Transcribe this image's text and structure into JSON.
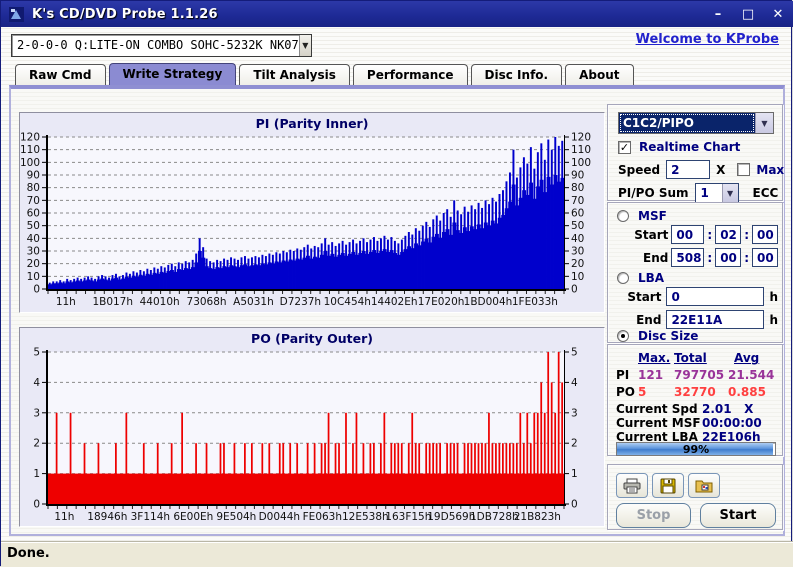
{
  "window": {
    "title": "K's CD/DVD Probe 1.1.26",
    "status": "Done.",
    "buttons": {
      "minimize": "–",
      "maximize": "□",
      "close": "✕"
    }
  },
  "toolbar": {
    "drive_value": "2-0-0-0 Q:LITE-ON COMBO SOHC-5232K NK07",
    "welcome_link": "Welcome to KProbe"
  },
  "tabs": [
    {
      "label": "Raw Cmd",
      "active": false
    },
    {
      "label": "Write Strategy",
      "active": true
    },
    {
      "label": "Tilt Analysis",
      "active": false
    },
    {
      "label": "Performance",
      "active": false
    },
    {
      "label": "Disc Info.",
      "active": false
    },
    {
      "label": "About",
      "active": false
    }
  ],
  "controls": {
    "mode_select": {
      "value": "C1C2/PIPO"
    },
    "realtime_chart": {
      "label": "Realtime Chart",
      "checked": true,
      "glyph": "✓"
    },
    "speed": {
      "label": "Speed",
      "value": "2",
      "unit": "X"
    },
    "max": {
      "label": "Max",
      "checked": false
    },
    "pipo_sum": {
      "label": "PI/PO Sum",
      "value": "1",
      "suffix": "ECC"
    },
    "msf": {
      "label": "MSF",
      "selected": false,
      "start_label": "Start",
      "end_label": "End",
      "separator": ":",
      "start": [
        "00",
        "02",
        "00"
      ],
      "end": [
        "508",
        "00",
        "00"
      ]
    },
    "lba": {
      "label": "LBA",
      "selected": false,
      "start_label": "Start",
      "end_label": "End",
      "start": "0",
      "end": "22E11A",
      "unit": "h"
    },
    "disc_size": {
      "label": "Disc Size",
      "selected": true
    }
  },
  "stats": {
    "headers": [
      "Max.",
      "Total",
      "Avg"
    ],
    "rows": [
      {
        "name": "PI",
        "max": "121",
        "total": "797705",
        "avg": "21.544",
        "color": "#993399"
      },
      {
        "name": "PO",
        "max": "5",
        "total": "32770",
        "avg": "0.885",
        "color": "#ff4040"
      }
    ],
    "current": [
      {
        "label": "Current Spd",
        "value": "2.01   X"
      },
      {
        "label": "Current MSF",
        "value": "00:00:00"
      },
      {
        "label": "Current LBA",
        "value": "22E106h"
      }
    ],
    "progress": {
      "percent": 99,
      "label": "99%",
      "color": "#4a86d8"
    }
  },
  "actions": {
    "stop_label": "Stop",
    "start_label": "Start",
    "icon_buttons": [
      {
        "icon": "printer"
      },
      {
        "icon": "save-floppy"
      },
      {
        "icon": "export-image"
      }
    ]
  },
  "chart_data": [
    {
      "type": "bar",
      "title": "PI (Parity Inner)",
      "xlabel": "",
      "ylabel": "",
      "ylim": [
        0,
        120
      ],
      "yticks": [
        0,
        10,
        20,
        30,
        40,
        50,
        60,
        70,
        80,
        90,
        100,
        110,
        120
      ],
      "grid": true,
      "color": "#0000cc",
      "x_tick_labels": [
        "11h",
        "1B017h",
        "44010h",
        "73068h",
        "A5031h",
        "D7237h",
        "10C454h",
        "14402Eh",
        "17E020h",
        "1BD004h",
        "1FE033h"
      ],
      "values": [
        5,
        6,
        6,
        7,
        6,
        8,
        7,
        8,
        9,
        8,
        9,
        10,
        9,
        8,
        10,
        11,
        10,
        9,
        11,
        12,
        10,
        11,
        13,
        12,
        14,
        13,
        15,
        14,
        16,
        15,
        17,
        16,
        18,
        17,
        19,
        20,
        18,
        21,
        20,
        22,
        21,
        23,
        28,
        40,
        33,
        24,
        22,
        21,
        23,
        22,
        24,
        23,
        25,
        24,
        23,
        25,
        26,
        24,
        25,
        26,
        25,
        27,
        26,
        28,
        27,
        29,
        28,
        30,
        29,
        31,
        30,
        32,
        31,
        33,
        35,
        32,
        34,
        33,
        36,
        40,
        35,
        37,
        34,
        36,
        38,
        35,
        37,
        39,
        36,
        38,
        40,
        37,
        39,
        41,
        38,
        40,
        42,
        39,
        41,
        38,
        36,
        39,
        42,
        45,
        43,
        48,
        46,
        50,
        53,
        49,
        55,
        58,
        54,
        60,
        63,
        57,
        70,
        62,
        59,
        65,
        61,
        66,
        63,
        68,
        64,
        70,
        67,
        72,
        69,
        75,
        78,
        85,
        92,
        110,
        88,
        96,
        104,
        99,
        112,
        95,
        108,
        115,
        102,
        118,
        110,
        120,
        113,
        117
      ]
    },
    {
      "type": "bar",
      "title": "PO (Parity Outer)",
      "xlabel": "",
      "ylabel": "",
      "ylim": [
        0,
        5
      ],
      "yticks": [
        0,
        1,
        2,
        3,
        4,
        5
      ],
      "grid": true,
      "color": "#ee0000",
      "baseline": 1,
      "x_tick_labels": [
        "11h",
        "18946h",
        "3F114h",
        "6E00Eh",
        "9E504h",
        "D0044h",
        "FE063h",
        "12E538h",
        "163F15h",
        "19D569h",
        "1DB728h",
        "21B823h"
      ],
      "values": [
        1,
        1,
        3,
        1,
        1,
        1,
        3,
        1,
        1,
        1,
        2,
        1,
        1,
        1,
        2,
        1,
        1,
        1,
        1,
        2,
        1,
        1,
        3,
        1,
        1,
        1,
        1,
        2,
        1,
        1,
        1,
        2,
        1,
        1,
        1,
        2,
        1,
        1,
        3,
        1,
        1,
        1,
        2,
        1,
        1,
        2,
        1,
        1,
        1,
        2,
        2,
        1,
        1,
        2,
        1,
        1,
        2,
        1,
        2,
        1,
        1,
        2,
        1,
        2,
        1,
        1,
        2,
        2,
        1,
        2,
        1,
        2,
        1,
        1,
        2,
        1,
        2,
        1,
        2,
        2,
        3,
        1,
        2,
        2,
        1,
        3,
        1,
        2,
        3,
        1,
        2,
        1,
        2,
        2,
        1,
        2,
        3,
        1,
        2,
        2,
        2,
        2,
        1,
        2,
        3,
        2,
        2,
        1,
        2,
        2,
        2,
        2,
        2,
        1,
        2,
        2,
        2,
        2,
        1,
        2,
        2,
        2,
        2,
        2,
        2,
        2,
        3,
        2,
        2,
        2,
        2,
        2,
        2,
        2,
        2,
        3,
        2,
        3,
        2,
        3,
        3,
        4,
        3,
        5,
        4,
        3,
        5,
        4
      ]
    }
  ]
}
